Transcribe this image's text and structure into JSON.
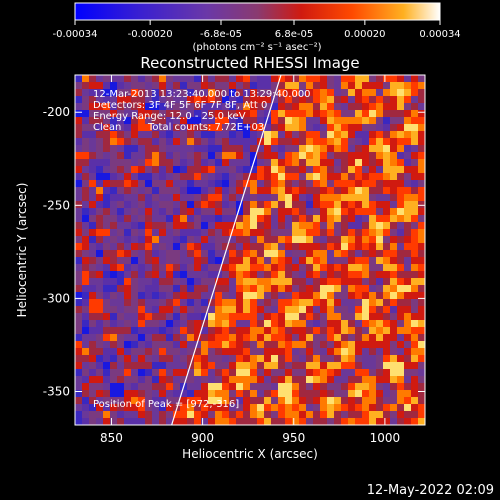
{
  "colorbar": {
    "tick_labels": [
      "-0.00034",
      "-0.00020",
      "-6.8e-05",
      "6.8e-05",
      "0.00020",
      "0.00034"
    ],
    "tick_values": [
      -0.00034,
      -0.0002,
      -6.8e-05,
      6.8e-05,
      0.0002,
      0.00034
    ],
    "range": [
      -0.00034,
      0.00034
    ],
    "unit_label": "(photons cm⁻² s⁻¹ asec⁻²)",
    "colors": [
      "#0000ff",
      "#5a2eb0",
      "#8a3a78",
      "#c01818",
      "#ff3a00",
      "#ff8a00",
      "#ffd040",
      "#ffffff"
    ]
  },
  "chart_data": {
    "type": "heatmap",
    "title": "Reconstructed RHESSI Image",
    "xlabel": "Heliocentric X (arcsec)",
    "ylabel": "Heliocentric Y (arcsec)",
    "xlim": [
      830,
      1022
    ],
    "ylim": [
      -368,
      -180
    ],
    "xticks": [
      850,
      900,
      950,
      1000
    ],
    "yticks": [
      -200,
      -250,
      -300,
      -350
    ],
    "grid": false,
    "annotations": {
      "time": "12-Mar-2013 13:23:40.000 to 13:29:40.000",
      "detectors": "Detectors: 3F 4F 5F 6F 7F 8F, Att 0",
      "energy": "Energy Range: 12.0 - 25.0 keV",
      "method": "Clean",
      "counts": "Total counts: 7.72E+03",
      "peak": "Position of Peak = [972,-316]"
    },
    "limb_line": {
      "x": [
        883,
        943
      ],
      "y": [
        -368,
        -180
      ]
    },
    "peak": {
      "x": 972,
      "y": -316
    }
  },
  "footer": {
    "date": "12-May-2022 02:09"
  }
}
